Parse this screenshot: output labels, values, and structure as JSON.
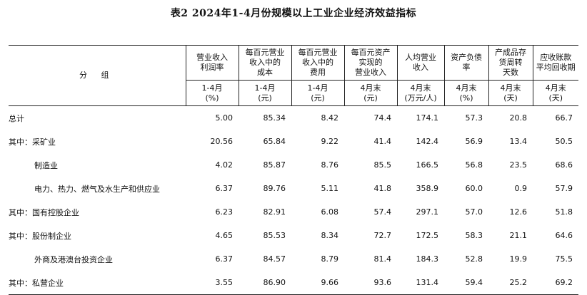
{
  "title": "表2   2024年1-4月份规模以上工业企业经济效益指标",
  "group_label": "分 组",
  "columns": [
    {
      "name": "营业收入利润率",
      "l1": "营业收入",
      "l2": "利润率",
      "period": "1-4月",
      "unit": "(%)"
    },
    {
      "name": "每百元营业收入中的成本",
      "l1": "每百元营业",
      "l2": "收入中的",
      "l3": "成本",
      "period": "1-4月",
      "unit": "(元)"
    },
    {
      "name": "每百元营业收入中的费用",
      "l1": "每百元营业",
      "l2": "收入中的",
      "l3": "费用",
      "period": "1-4月",
      "unit": "(元)"
    },
    {
      "name": "每百元资产实现的营业收入",
      "l1": "每百元资产",
      "l2": "实现的",
      "l3": "营业收入",
      "period": "4月末",
      "unit": "(元)"
    },
    {
      "name": "人均营业收入",
      "l1": "人均营业",
      "l2": "收入",
      "period": "4月末",
      "unit": "(万元/人)"
    },
    {
      "name": "资产负债率",
      "l1": "资产负债",
      "l2": "率",
      "period": "4月末",
      "unit": "(%)"
    },
    {
      "name": "产成品存货周转天数",
      "l1": "产成品存",
      "l2": "货周转",
      "l3": "天数",
      "period": "4月末",
      "unit": "(天)"
    },
    {
      "name": "应收账款平均回收期",
      "l1": "应收账款",
      "l2": "平均回收期",
      "period": "4月末",
      "unit": "(天)"
    }
  ],
  "rows": [
    {
      "label": "总计",
      "indent": 0,
      "values": [
        "5.00",
        "85.34",
        "8.42",
        "74.4",
        "174.1",
        "57.3",
        "20.8",
        "66.7"
      ]
    },
    {
      "label": "其中：采矿业",
      "indent": 0,
      "values": [
        "20.56",
        "65.84",
        "9.22",
        "41.4",
        "142.4",
        "56.9",
        "13.4",
        "50.5"
      ]
    },
    {
      "label": "制造业",
      "indent": 1,
      "values": [
        "4.02",
        "85.87",
        "8.76",
        "85.5",
        "166.5",
        "56.8",
        "23.5",
        "68.6"
      ]
    },
    {
      "label": "电力、热力、燃气及水生产和供应业",
      "indent": 1,
      "values": [
        "6.37",
        "89.76",
        "5.11",
        "41.8",
        "358.9",
        "60.0",
        "0.9",
        "57.9"
      ]
    },
    {
      "label": "其中：国有控股企业",
      "indent": 0,
      "values": [
        "6.23",
        "82.91",
        "6.08",
        "57.4",
        "297.1",
        "57.0",
        "12.6",
        "51.8"
      ]
    },
    {
      "label": "其中：股份制企业",
      "indent": 0,
      "values": [
        "4.65",
        "85.53",
        "8.34",
        "72.7",
        "172.5",
        "58.3",
        "21.1",
        "64.6"
      ]
    },
    {
      "label": "外商及港澳台投资企业",
      "indent": 1,
      "values": [
        "6.37",
        "84.57",
        "8.79",
        "81.4",
        "184.3",
        "52.8",
        "19.9",
        "75.5"
      ]
    },
    {
      "label": "其中：私营企业",
      "indent": 0,
      "values": [
        "3.55",
        "86.90",
        "9.66",
        "93.6",
        "131.4",
        "59.4",
        "25.2",
        "69.2"
      ]
    }
  ]
}
